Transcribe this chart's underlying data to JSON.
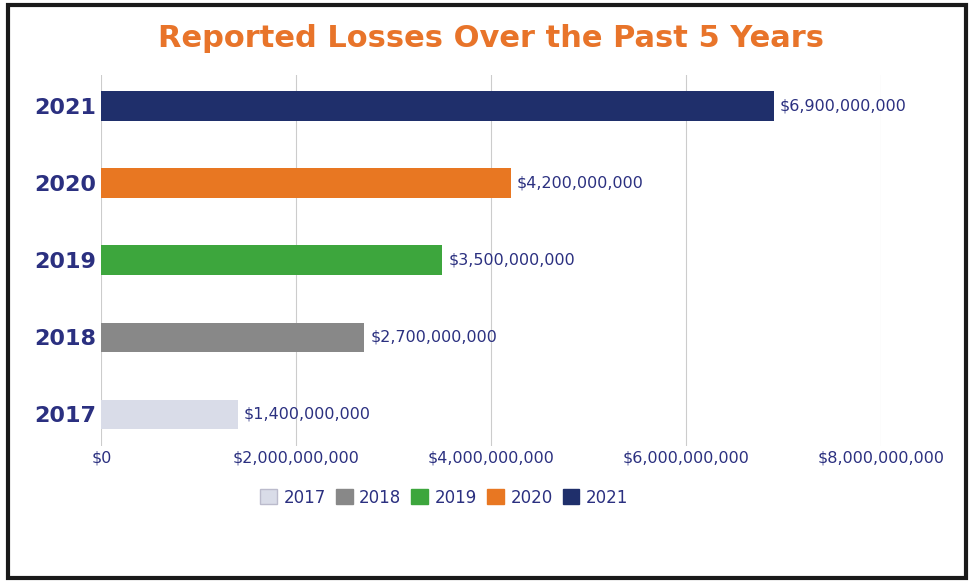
{
  "title": "Reported Losses Over the Past 5 Years",
  "title_color": "#E8742A",
  "title_fontsize": 22,
  "years": [
    "2017",
    "2018",
    "2019",
    "2020",
    "2021"
  ],
  "values": [
    1400000000,
    2700000000,
    3500000000,
    4200000000,
    6900000000
  ],
  "bar_colors": [
    "#D9DCE8",
    "#888888",
    "#3DA63D",
    "#E87722",
    "#1F2F6B"
  ],
  "label_color": "#2B3080",
  "bar_labels": [
    "$1,400,000,000",
    "$2,700,000,000",
    "$3,500,000,000",
    "$4,200,000,000",
    "$6,900,000,000"
  ],
  "ytick_color": "#2B3080",
  "xtick_color": "#2B3080",
  "xlim": [
    0,
    8000000000
  ],
  "xticks": [
    0,
    2000000000,
    4000000000,
    6000000000,
    8000000000
  ],
  "xtick_labels": [
    "$0",
    "$2,000,000,000",
    "$4,000,000,000",
    "$6,000,000,000",
    "$8,000,000,000"
  ],
  "grid_color": "#CCCCCC",
  "background_color": "#FFFFFF",
  "border_color": "#1A1A1A",
  "legend_labels": [
    "2017",
    "2018",
    "2019",
    "2020",
    "2021"
  ],
  "legend_colors": [
    "#D9DCE8",
    "#888888",
    "#3DA63D",
    "#E87722",
    "#1F2F6B"
  ],
  "legend_edge_colors": [
    "#BBBBCC",
    "#888888",
    "#3DA63D",
    "#E87722",
    "#1F2F6B"
  ],
  "bar_height": 0.38,
  "label_fontsize": 11.5,
  "tick_fontsize": 11.5,
  "ytick_fontsize": 16,
  "legend_fontsize": 12
}
